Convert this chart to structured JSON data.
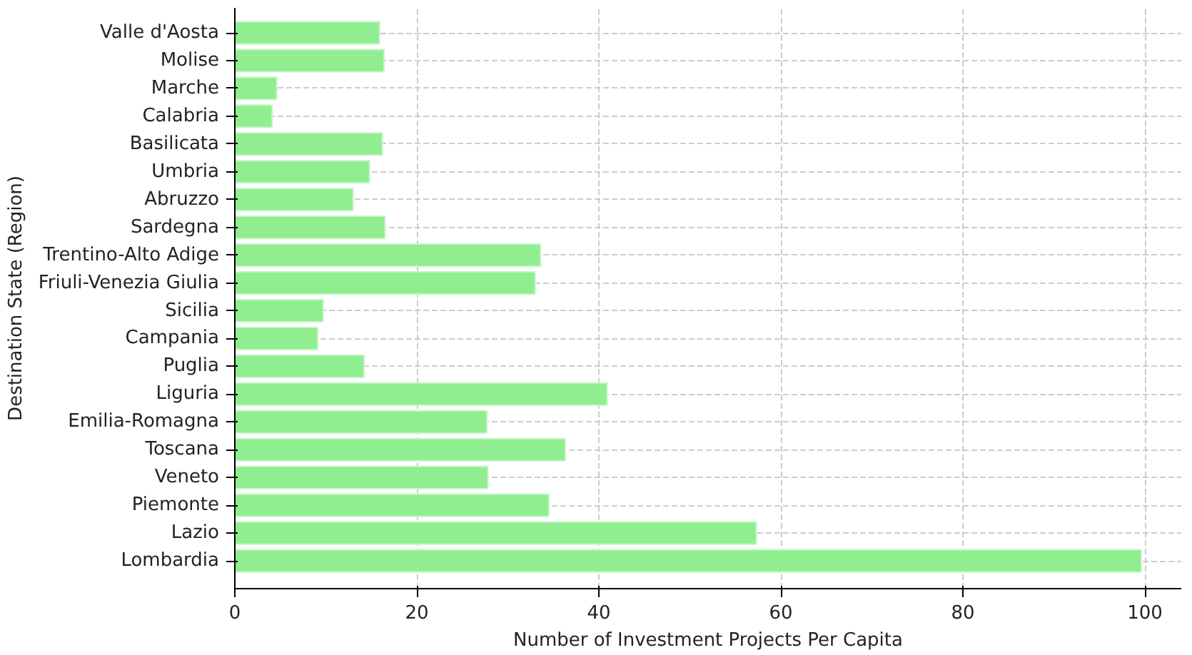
{
  "chart_data": {
    "type": "bar",
    "orientation": "horizontal",
    "xlabel": "Number of Investment Projects Per Capita",
    "ylabel": "Destination State (Region)",
    "categories": [
      "Valle d'Aosta",
      "Molise",
      "Marche",
      "Calabria",
      "Basilicata",
      "Umbria",
      "Abruzzo",
      "Sardegna",
      "Trentino-Alto Adige",
      "Friuli-Venezia Giulia",
      "Sicilia",
      "Campania",
      "Puglia",
      "Liguria",
      "Emilia-Romagna",
      "Toscana",
      "Veneto",
      "Piemonte",
      "Lazio",
      "Lombardia"
    ],
    "values": [
      15.9,
      16.4,
      4.6,
      4.1,
      16.2,
      14.8,
      13.0,
      16.5,
      33.6,
      33.0,
      9.7,
      9.1,
      14.2,
      40.9,
      27.7,
      36.3,
      27.8,
      34.5,
      57.3,
      99.6
    ],
    "color": "#90ee90",
    "xlim": [
      0,
      104
    ],
    "xticks": [
      0,
      20,
      40,
      60,
      80,
      100
    ],
    "grid": true
  }
}
